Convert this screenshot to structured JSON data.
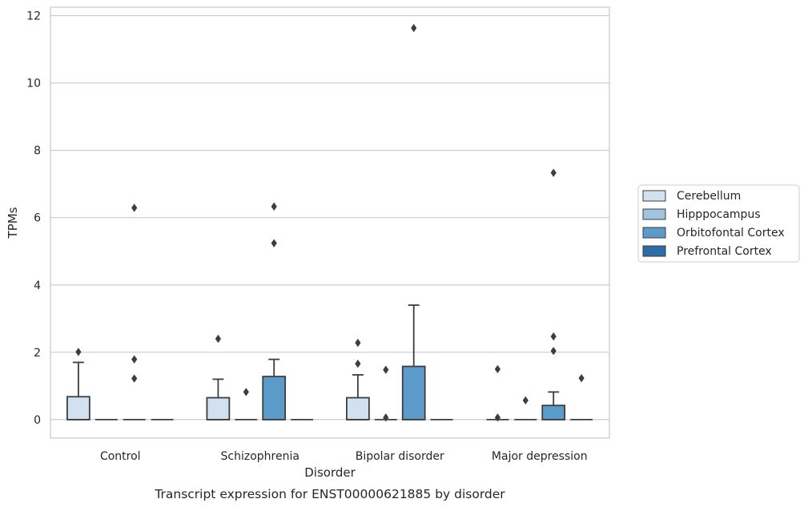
{
  "chart_data": {
    "type": "box",
    "caption": "Transcript expression for ENST00000621885 by disorder",
    "xlabel": "Disorder",
    "ylabel": "TPMs",
    "ylim": [
      -0.55,
      12.25
    ],
    "yticks": [
      0,
      2,
      4,
      6,
      8,
      10,
      12
    ],
    "categories": [
      "Control",
      "Schizophrenia",
      "Bipolar disorder",
      "Major depression"
    ],
    "grid": "horizontal",
    "legend_position": "right",
    "series": [
      {
        "name": "Cerebellum",
        "color": "#d1e1f0",
        "boxes": [
          {
            "q1": 0,
            "median": 0,
            "q3": 0.68,
            "whisker_low": 0,
            "whisker_high": 1.7,
            "outliers": [
              2.01
            ]
          },
          {
            "q1": 0,
            "median": 0,
            "q3": 0.65,
            "whisker_low": 0,
            "whisker_high": 1.2,
            "outliers": [
              2.4
            ]
          },
          {
            "q1": 0,
            "median": 0,
            "q3": 0.65,
            "whisker_low": 0,
            "whisker_high": 1.33,
            "outliers": [
              1.66,
              2.28
            ]
          },
          {
            "q1": 0,
            "median": 0,
            "q3": 0,
            "whisker_low": 0,
            "whisker_high": 0,
            "outliers": [
              0.06,
              1.5
            ]
          }
        ]
      },
      {
        "name": "Hipppocampus",
        "color": "#a0c4de",
        "boxes": [
          {
            "q1": 0,
            "median": 0,
            "q3": 0,
            "whisker_low": 0,
            "whisker_high": 0,
            "outliers": []
          },
          {
            "q1": 0,
            "median": 0,
            "q3": 0,
            "whisker_low": 0,
            "whisker_high": 0,
            "outliers": [
              0.82
            ]
          },
          {
            "q1": 0,
            "median": 0,
            "q3": 0,
            "whisker_low": 0,
            "whisker_high": 0,
            "outliers": [
              0.06,
              1.48
            ]
          },
          {
            "q1": 0,
            "median": 0,
            "q3": 0,
            "whisker_low": 0,
            "whisker_high": 0,
            "outliers": [
              0.57
            ]
          }
        ]
      },
      {
        "name": "Orbitofontal Cortex",
        "color": "#5b9bc9",
        "boxes": [
          {
            "q1": 0,
            "median": 0,
            "q3": 0,
            "whisker_low": 0,
            "whisker_high": 0,
            "outliers": [
              1.22,
              1.79,
              6.29
            ]
          },
          {
            "q1": 0,
            "median": 0,
            "q3": 1.28,
            "whisker_low": 0,
            "whisker_high": 1.79,
            "outliers": [
              5.24,
              6.33
            ]
          },
          {
            "q1": 0,
            "median": 0,
            "q3": 1.58,
            "whisker_low": 0,
            "whisker_high": 3.4,
            "outliers": [
              11.63
            ]
          },
          {
            "q1": 0,
            "median": 0,
            "q3": 0.42,
            "whisker_low": 0,
            "whisker_high": 0.82,
            "outliers": [
              2.04,
              2.47,
              7.33
            ]
          }
        ]
      },
      {
        "name": "Prefrontal Cortex",
        "color": "#2c6da8",
        "boxes": [
          {
            "q1": 0,
            "median": 0,
            "q3": 0,
            "whisker_low": 0,
            "whisker_high": 0,
            "outliers": []
          },
          {
            "q1": 0,
            "median": 0,
            "q3": 0,
            "whisker_low": 0,
            "whisker_high": 0,
            "outliers": []
          },
          {
            "q1": 0,
            "median": 0,
            "q3": 0,
            "whisker_low": 0,
            "whisker_high": 0,
            "outliers": []
          },
          {
            "q1": 0,
            "median": 0,
            "q3": 0,
            "whisker_low": 0,
            "whisker_high": 0,
            "outliers": [
              1.23
            ]
          }
        ]
      }
    ]
  }
}
